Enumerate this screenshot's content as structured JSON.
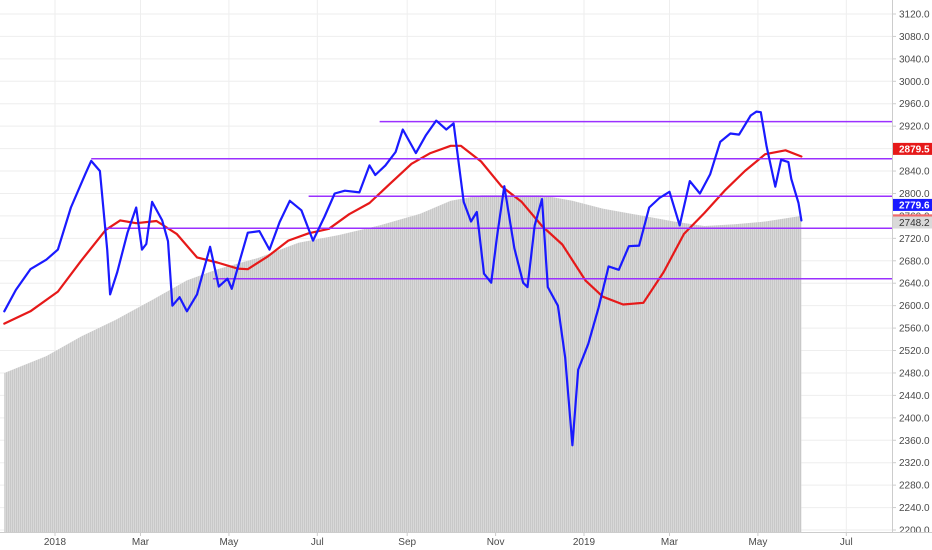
{
  "chart_data": {
    "type": "line",
    "title": "",
    "xlabel": "",
    "ylabel": "",
    "ylim": [
      2200,
      3140
    ],
    "yticks": [
      2200,
      2240,
      2280,
      2320,
      2360,
      2400,
      2440,
      2480,
      2520,
      2560,
      2600,
      2640,
      2680,
      2720,
      2760,
      2800,
      2840,
      2880,
      2920,
      2960,
      3000,
      3040,
      3080,
      3120
    ],
    "ytick_labels": [
      "2200.0",
      "2240.0",
      "2280.0",
      "2320.0",
      "2360.0",
      "2400.0",
      "2440.0",
      "2480.0",
      "2520.0",
      "2560.0",
      "2600.0",
      "2640.0",
      "2680.0",
      "2720.0",
      "2760.0",
      "2800.0",
      "2840.0",
      "2880.0",
      "2920.0",
      "2960.0",
      "3000.0",
      "3040.0",
      "3080.0",
      "3120.0"
    ],
    "x_axis": {
      "ticks": [
        {
          "label": "2018",
          "date": "2018-01-01"
        },
        {
          "label": "Mar",
          "date": "2018-03-01"
        },
        {
          "label": "May",
          "date": "2018-05-01"
        },
        {
          "label": "Jul",
          "date": "2018-07-01"
        },
        {
          "label": "Sep",
          "date": "2018-09-01"
        },
        {
          "label": "Nov",
          "date": "2018-11-01"
        },
        {
          "label": "2019",
          "date": "2019-01-01"
        },
        {
          "label": "Mar",
          "date": "2019-03-01"
        },
        {
          "label": "May",
          "date": "2019-05-01"
        },
        {
          "label": "Jul",
          "date": "2019-07-01"
        }
      ]
    },
    "grid": true,
    "series": [
      {
        "role": "price",
        "color": "#1a1aff",
        "last_value": 2779.6,
        "points": [
          [
            "2017-11-27",
            2590
          ],
          [
            "2017-12-05",
            2628
          ],
          [
            "2017-12-15",
            2665
          ],
          [
            "2017-12-26",
            2682
          ],
          [
            "2018-01-03",
            2700
          ],
          [
            "2018-01-12",
            2775
          ],
          [
            "2018-01-22",
            2835
          ],
          [
            "2018-01-26",
            2858
          ],
          [
            "2018-02-01",
            2840
          ],
          [
            "2018-02-06",
            2700
          ],
          [
            "2018-02-08",
            2620
          ],
          [
            "2018-02-13",
            2660
          ],
          [
            "2018-02-20",
            2730
          ],
          [
            "2018-02-26",
            2775
          ],
          [
            "2018-03-02",
            2700
          ],
          [
            "2018-03-05",
            2710
          ],
          [
            "2018-03-09",
            2785
          ],
          [
            "2018-03-16",
            2752
          ],
          [
            "2018-03-20",
            2715
          ],
          [
            "2018-03-23",
            2600
          ],
          [
            "2018-03-28",
            2615
          ],
          [
            "2018-04-02",
            2590
          ],
          [
            "2018-04-09",
            2620
          ],
          [
            "2018-04-18",
            2705
          ],
          [
            "2018-04-24",
            2634
          ],
          [
            "2018-04-30",
            2648
          ],
          [
            "2018-05-03",
            2630
          ],
          [
            "2018-05-09",
            2685
          ],
          [
            "2018-05-14",
            2730
          ],
          [
            "2018-05-22",
            2733
          ],
          [
            "2018-05-29",
            2700
          ],
          [
            "2018-06-05",
            2749
          ],
          [
            "2018-06-12",
            2787
          ],
          [
            "2018-06-20",
            2770
          ],
          [
            "2018-06-28",
            2716
          ],
          [
            "2018-07-06",
            2759
          ],
          [
            "2018-07-13",
            2800
          ],
          [
            "2018-07-20",
            2805
          ],
          [
            "2018-07-30",
            2802
          ],
          [
            "2018-08-06",
            2850
          ],
          [
            "2018-08-10",
            2833
          ],
          [
            "2018-08-17",
            2850
          ],
          [
            "2018-08-24",
            2874
          ],
          [
            "2018-08-29",
            2914
          ],
          [
            "2018-09-07",
            2872
          ],
          [
            "2018-09-14",
            2904
          ],
          [
            "2018-09-21",
            2930
          ],
          [
            "2018-09-28",
            2914
          ],
          [
            "2018-10-03",
            2925
          ],
          [
            "2018-10-10",
            2785
          ],
          [
            "2018-10-15",
            2750
          ],
          [
            "2018-10-19",
            2767
          ],
          [
            "2018-10-24",
            2657
          ],
          [
            "2018-10-29",
            2641
          ],
          [
            "2018-11-02",
            2723
          ],
          [
            "2018-11-07",
            2813
          ],
          [
            "2018-11-14",
            2702
          ],
          [
            "2018-11-20",
            2641
          ],
          [
            "2018-11-23",
            2633
          ],
          [
            "2018-11-28",
            2743
          ],
          [
            "2018-12-03",
            2790
          ],
          [
            "2018-12-07",
            2633
          ],
          [
            "2018-12-14",
            2600
          ],
          [
            "2018-12-19",
            2507
          ],
          [
            "2018-12-24",
            2351
          ],
          [
            "2018-12-28",
            2486
          ],
          [
            "2019-01-04",
            2532
          ],
          [
            "2019-01-11",
            2596
          ],
          [
            "2019-01-18",
            2670
          ],
          [
            "2019-01-25",
            2664
          ],
          [
            "2019-02-01",
            2706
          ],
          [
            "2019-02-08",
            2707
          ],
          [
            "2019-02-15",
            2775
          ],
          [
            "2019-02-22",
            2792
          ],
          [
            "2019-03-01",
            2803
          ],
          [
            "2019-03-08",
            2743
          ],
          [
            "2019-03-15",
            2822
          ],
          [
            "2019-03-22",
            2800
          ],
          [
            "2019-03-29",
            2834
          ],
          [
            "2019-04-05",
            2892
          ],
          [
            "2019-04-12",
            2907
          ],
          [
            "2019-04-18",
            2905
          ],
          [
            "2019-04-26",
            2939
          ],
          [
            "2019-04-30",
            2946
          ],
          [
            "2019-05-03",
            2945
          ],
          [
            "2019-05-07",
            2884
          ],
          [
            "2019-05-13",
            2812
          ],
          [
            "2019-05-17",
            2860
          ],
          [
            "2019-05-22",
            2856
          ],
          [
            "2019-05-24",
            2826
          ],
          [
            "2019-05-29",
            2783
          ],
          [
            "2019-05-31",
            2752
          ]
        ]
      },
      {
        "role": "moving-average",
        "color": "#e61919",
        "last_value": 2752.1,
        "points": [
          [
            "2017-11-27",
            2568
          ],
          [
            "2017-12-15",
            2590
          ],
          [
            "2018-01-03",
            2625
          ],
          [
            "2018-01-19",
            2680
          ],
          [
            "2018-02-05",
            2735
          ],
          [
            "2018-02-15",
            2752
          ],
          [
            "2018-02-26",
            2747
          ],
          [
            "2018-03-12",
            2751
          ],
          [
            "2018-03-26",
            2728
          ],
          [
            "2018-04-09",
            2686
          ],
          [
            "2018-04-23",
            2677
          ],
          [
            "2018-05-07",
            2666
          ],
          [
            "2018-05-14",
            2665
          ],
          [
            "2018-05-28",
            2688
          ],
          [
            "2018-06-11",
            2716
          ],
          [
            "2018-06-25",
            2729
          ],
          [
            "2018-07-09",
            2737
          ],
          [
            "2018-07-23",
            2763
          ],
          [
            "2018-08-06",
            2783
          ],
          [
            "2018-08-20",
            2817
          ],
          [
            "2018-09-04",
            2853
          ],
          [
            "2018-09-17",
            2872
          ],
          [
            "2018-10-01",
            2885
          ],
          [
            "2018-10-08",
            2885
          ],
          [
            "2018-10-22",
            2857
          ],
          [
            "2018-11-05",
            2813
          ],
          [
            "2018-11-19",
            2785
          ],
          [
            "2018-12-03",
            2742
          ],
          [
            "2018-12-17",
            2709
          ],
          [
            "2019-01-02",
            2645
          ],
          [
            "2019-01-14",
            2616
          ],
          [
            "2019-01-28",
            2602
          ],
          [
            "2019-02-11",
            2605
          ],
          [
            "2019-02-25",
            2660
          ],
          [
            "2019-03-11",
            2728
          ],
          [
            "2019-03-25",
            2765
          ],
          [
            "2019-04-08",
            2805
          ],
          [
            "2019-04-22",
            2840
          ],
          [
            "2019-05-06",
            2870
          ],
          [
            "2019-05-20",
            2877
          ],
          [
            "2019-05-31",
            2866
          ]
        ]
      },
      {
        "role": "volume-area",
        "color": "#c8c8c8",
        "last_value": 2748.2,
        "points": [
          [
            "2017-11-27",
            2480
          ],
          [
            "2017-12-26",
            2510
          ],
          [
            "2018-01-19",
            2545
          ],
          [
            "2018-02-12",
            2575
          ],
          [
            "2018-03-09",
            2610
          ],
          [
            "2018-04-02",
            2645
          ],
          [
            "2018-04-23",
            2665
          ],
          [
            "2018-05-21",
            2685
          ],
          [
            "2018-06-18",
            2712
          ],
          [
            "2018-07-16",
            2726
          ],
          [
            "2018-08-13",
            2743
          ],
          [
            "2018-09-10",
            2764
          ],
          [
            "2018-10-01",
            2787
          ],
          [
            "2018-10-22",
            2797
          ],
          [
            "2018-11-12",
            2797
          ],
          [
            "2018-12-03",
            2797
          ],
          [
            "2018-12-24",
            2787
          ],
          [
            "2019-01-14",
            2773
          ],
          [
            "2019-02-11",
            2760
          ],
          [
            "2019-03-04",
            2750
          ],
          [
            "2019-03-25",
            2742
          ],
          [
            "2019-04-15",
            2745
          ],
          [
            "2019-05-06",
            2750
          ],
          [
            "2019-05-31",
            2760
          ]
        ]
      }
    ],
    "horizontal_lines": [
      {
        "value": 2928,
        "start": "2018-08-13",
        "color": "#9b30ff"
      },
      {
        "value": 2862,
        "start": "2018-01-26",
        "color": "#9b30ff"
      },
      {
        "value": 2795,
        "start": "2018-06-25",
        "color": "#9b30ff"
      },
      {
        "value": 2738,
        "start": "2018-02-05",
        "color": "#9b30ff"
      },
      {
        "value": 2648,
        "start": "2018-04-20",
        "color": "#9b30ff"
      }
    ],
    "price_badges": [
      {
        "label": "2879.5",
        "value": 2879.5,
        "bg": "#e61919",
        "text": "light"
      },
      {
        "label": "2779.6",
        "value": 2779.6,
        "bg": "#1a1aff",
        "text": "light"
      },
      {
        "label": "2752.1",
        "value": 2752.1,
        "bg": "#f06a6a",
        "text": "light"
      },
      {
        "label": "2748.2",
        "value": 2748.2,
        "bg": "#d9d9d9",
        "text": "dark"
      }
    ]
  },
  "colors": {
    "background": "#ffffff",
    "grid": "#eeeeee",
    "axis_line": "#cccccc"
  }
}
